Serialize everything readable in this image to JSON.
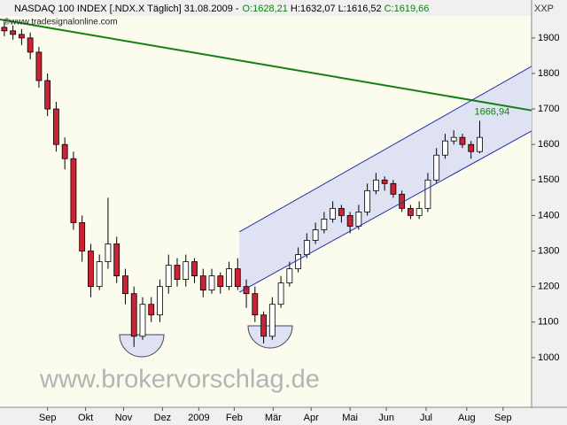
{
  "header": {
    "symbol": "NASDAQ 100 INDEX [.NDX.X Täglich] 31.08.2009 -",
    "open": "O:1628,21",
    "high": "H:1632,07",
    "low": "L:1616,52",
    "close": "C:1619,66"
  },
  "source": "©www.tradesignalonline.com",
  "corner": "XXP",
  "watermark": "www.brokervorschlag.de",
  "chart_data": {
    "type": "candlestick",
    "x": [
      0,
      1,
      2,
      3,
      4,
      5,
      6,
      7,
      8,
      9,
      10,
      11,
      12,
      13,
      14,
      15,
      16,
      17,
      18,
      19,
      20,
      21,
      22,
      23,
      24,
      25,
      26,
      27,
      28,
      29,
      30,
      31,
      32,
      33,
      34,
      35,
      36,
      37,
      38,
      39,
      40,
      41,
      42,
      43,
      44,
      45,
      46,
      47,
      48,
      49,
      50,
      51,
      52,
      53,
      54,
      55
    ],
    "open": [
      1930,
      1920,
      1910,
      1900,
      1860,
      1780,
      1700,
      1600,
      1560,
      1380,
      1300,
      1200,
      1270,
      1320,
      1230,
      1180,
      1060,
      1150,
      1120,
      1200,
      1260,
      1220,
      1270,
      1230,
      1190,
      1230,
      1200,
      1250,
      1200,
      1180,
      1120,
      1060,
      1150,
      1210,
      1250,
      1290,
      1330,
      1360,
      1390,
      1420,
      1400,
      1370,
      1410,
      1470,
      1500,
      1490,
      1460,
      1420,
      1400,
      1420,
      1500,
      1570,
      1610,
      1620,
      1600,
      1580
    ],
    "high": [
      1945,
      1935,
      1925,
      1915,
      1875,
      1800,
      1720,
      1620,
      1580,
      1400,
      1320,
      1290,
      1450,
      1340,
      1250,
      1200,
      1170,
      1170,
      1220,
      1290,
      1280,
      1290,
      1280,
      1250,
      1250,
      1240,
      1270,
      1280,
      1220,
      1200,
      1130,
      1170,
      1230,
      1270,
      1310,
      1350,
      1380,
      1410,
      1440,
      1430,
      1410,
      1430,
      1490,
      1520,
      1510,
      1500,
      1470,
      1430,
      1440,
      1520,
      1590,
      1630,
      1640,
      1630,
      1610,
      1666.94
    ],
    "low": [
      1905,
      1895,
      1880,
      1840,
      1760,
      1680,
      1580,
      1530,
      1360,
      1270,
      1170,
      1190,
      1250,
      1210,
      1150,
      1030,
      1050,
      1100,
      1100,
      1180,
      1200,
      1200,
      1210,
      1170,
      1180,
      1180,
      1190,
      1190,
      1140,
      1100,
      1040,
      1050,
      1140,
      1200,
      1240,
      1280,
      1320,
      1350,
      1380,
      1380,
      1350,
      1360,
      1400,
      1460,
      1470,
      1450,
      1410,
      1390,
      1390,
      1410,
      1490,
      1560,
      1600,
      1590,
      1560,
      1575
    ],
    "close": [
      1920,
      1910,
      1900,
      1860,
      1780,
      1700,
      1600,
      1560,
      1380,
      1300,
      1200,
      1270,
      1320,
      1230,
      1180,
      1060,
      1150,
      1120,
      1200,
      1260,
      1220,
      1270,
      1230,
      1190,
      1230,
      1200,
      1250,
      1200,
      1180,
      1120,
      1060,
      1150,
      1210,
      1250,
      1290,
      1330,
      1360,
      1390,
      1420,
      1400,
      1370,
      1410,
      1470,
      1500,
      1490,
      1460,
      1420,
      1400,
      1420,
      1500,
      1570,
      1610,
      1620,
      1600,
      1580,
      1620
    ],
    "up_color": "#ffffff",
    "down_color": "#cc2233",
    "xlim": [
      -0.5,
      61
    ],
    "ylim": [
      860,
      1962
    ],
    "yticks": [
      1000,
      1100,
      1200,
      1300,
      1400,
      1500,
      1600,
      1700,
      1800,
      1900
    ],
    "xticks": [
      {
        "value": 5,
        "label": "Sep"
      },
      {
        "value": 9.4,
        "label": "Okt"
      },
      {
        "value": 13.8,
        "label": "Nov"
      },
      {
        "value": 18.3,
        "label": "Dez"
      },
      {
        "value": 22.5,
        "label": "2009"
      },
      {
        "value": 26.6,
        "label": "Feb"
      },
      {
        "value": 31.1,
        "label": "Mär"
      },
      {
        "value": 35.5,
        "label": "Apr"
      },
      {
        "value": 40,
        "label": "Mai"
      },
      {
        "value": 44.2,
        "label": "Jun"
      },
      {
        "value": 48.8,
        "label": "Jul"
      },
      {
        "value": 53.5,
        "label": "Aug"
      },
      {
        "value": 57.7,
        "label": "Sep"
      }
    ],
    "trendlines": [
      {
        "color": "#108010",
        "x": [
          -0.5,
          61
        ],
        "y": [
          1952,
          1696
        ]
      },
      {
        "color": "#2233aa",
        "x": [
          27.2,
          61
        ],
        "y": [
          1354,
          1820
        ]
      },
      {
        "color": "#2233aa",
        "x": [
          27.2,
          61
        ],
        "y": [
          1184,
          1638
        ]
      }
    ],
    "channel_color": "#dfe2f2",
    "annotation": {
      "x": 55,
      "y": 1666.94,
      "label": "1666,94",
      "color": "#108010"
    }
  }
}
